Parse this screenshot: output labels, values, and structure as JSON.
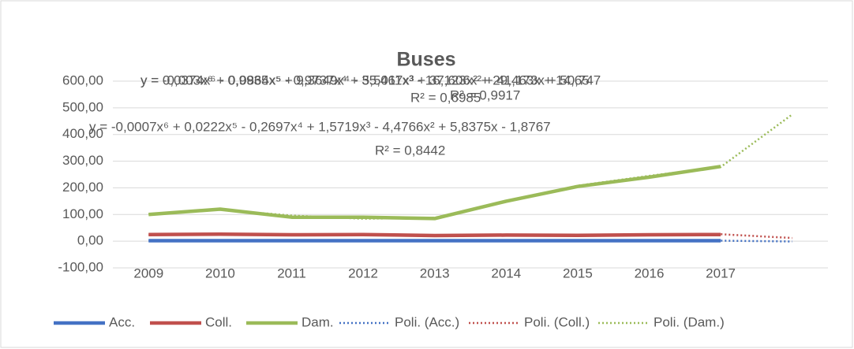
{
  "chart_data": {
    "type": "line",
    "title": "Buses",
    "categories": [
      "2009",
      "2010",
      "2011",
      "2012",
      "2013",
      "2014",
      "2015",
      "2016",
      "2017",
      null
    ],
    "series": [
      {
        "name": "Acc.",
        "color": "#4472c4",
        "style": "solid",
        "values": [
          2,
          2,
          2,
          2,
          2,
          2,
          2,
          2,
          2,
          null
        ]
      },
      {
        "name": "Coll.",
        "color": "#c0504d",
        "style": "solid",
        "values": [
          25,
          26,
          24,
          25,
          21,
          23,
          22,
          24,
          25,
          null
        ]
      },
      {
        "name": "Dam.",
        "color": "#9bbb59",
        "style": "solid",
        "values": [
          100,
          120,
          90,
          90,
          85,
          150,
          205,
          240,
          280,
          null
        ]
      },
      {
        "name": "Poli. (Acc.)",
        "color": "#4472c4",
        "style": "dotted",
        "values": [
          2,
          2,
          1,
          1,
          2,
          2,
          1,
          1,
          2,
          -1
        ]
      },
      {
        "name": "Poli. (Coll.)",
        "color": "#c0504d",
        "style": "dotted",
        "values": [
          25,
          26,
          25,
          25,
          22,
          23,
          22,
          24,
          26,
          12
        ]
      },
      {
        "name": "Poli. (Dam.)",
        "color": "#9bbb59",
        "style": "dotted",
        "values": [
          100,
          118,
          96,
          84,
          88,
          148,
          208,
          245,
          278,
          475
        ]
      }
    ],
    "ylim": [
      -100,
      600
    ],
    "yticks": [
      {
        "value": -100,
        "label": "-100,00"
      },
      {
        "value": 0,
        "label": "0,00"
      },
      {
        "value": 100,
        "label": "100,00"
      },
      {
        "value": 200,
        "label": "200,00"
      },
      {
        "value": 300,
        "label": "300,00"
      },
      {
        "value": 400,
        "label": "400,00"
      },
      {
        "value": 500,
        "label": "500,00"
      },
      {
        "value": 600,
        "label": "600,00"
      }
    ],
    "grid": true,
    "legend": "bottom",
    "annotations": [
      "y = -0,003x⁶ + 0,0864x⁵ - 0,9737x⁴ + 5,5011x³ - 16,123x² + 29,463x + 14,65",
      "y = 0,0374x⁶ - 0,9935x⁵ + 9,3649x⁴ - 35,467x³ + 37,606x² + 41,173x + 50,747",
      "R² = 0,6985",
      "R² = 0,9917",
      "y = -0,0007x⁶ + 0,0222x⁵ - 0,2697x⁴ + 1,5719x³ - 4,4766x² + 5,8375x - 1,8767",
      "R² = 0,8442"
    ]
  }
}
